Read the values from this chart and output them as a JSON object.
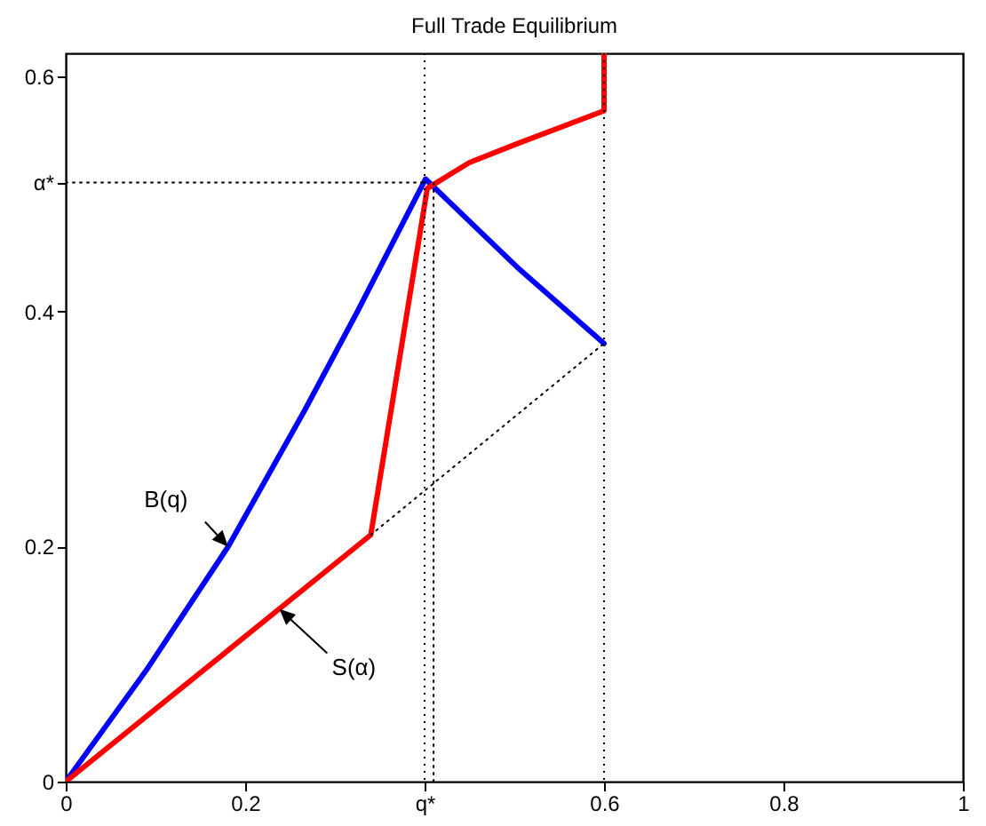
{
  "chart_data": {
    "type": "line",
    "title": "Full Trade Equilibrium",
    "xlim": [
      0,
      1
    ],
    "ylim": [
      0,
      0.62
    ],
    "xticks": [
      0,
      0.2,
      {
        "value": 0.4,
        "label": "q*"
      },
      0.6,
      0.8,
      1
    ],
    "yticks": [
      0,
      0.2,
      0.4,
      {
        "value": 0.51,
        "label": "α*"
      },
      0.6
    ],
    "grid": false,
    "marker": "none",
    "series": [
      {
        "color": "#0000ff",
        "line_style": "solid",
        "x": [
          0,
          0.09,
          0.181,
          0.267,
          0.325,
          0.401,
          0.503,
          0.6
        ],
        "values": [
          0,
          0.095,
          0.2,
          0.317,
          0.4,
          0.513,
          0.438,
          0.373
        ]
      },
      {
        "color": "#ff0000",
        "line_style": "solid",
        "x": [
          0,
          0.34,
          0.403,
          0.45,
          0.503,
          0.6,
          0.6
        ],
        "values": [
          0,
          0.21,
          0.505,
          0.527,
          0.543,
          0.571,
          0.62
        ]
      },
      {
        "color": "#000000",
        "line_style": "dotted",
        "x": [
          0.34,
          0.6
        ],
        "values": [
          0.21,
          0.373
        ]
      },
      {
        "color": "#000000",
        "line_style": "dotted",
        "x": [
          0,
          0.4
        ],
        "values": [
          0.51,
          0.51
        ]
      },
      {
        "color": "#000000",
        "line_style": "dotted",
        "x": [
          0.41,
          0.41
        ],
        "values": [
          0,
          0.51
        ]
      }
    ],
    "ref_lines": [
      {
        "axis": "x",
        "value": 0.4,
        "color": "#000000",
        "line_style": "dotted"
      },
      {
        "axis": "x",
        "value": 0.6,
        "color": "#000000",
        "line_style": "dotted"
      }
    ],
    "annotations": [
      {
        "text": "B(q)",
        "x": 0.181,
        "y": 0.2
      },
      {
        "text": "S(α)",
        "x": 0.238,
        "y": 0.147
      }
    ]
  }
}
